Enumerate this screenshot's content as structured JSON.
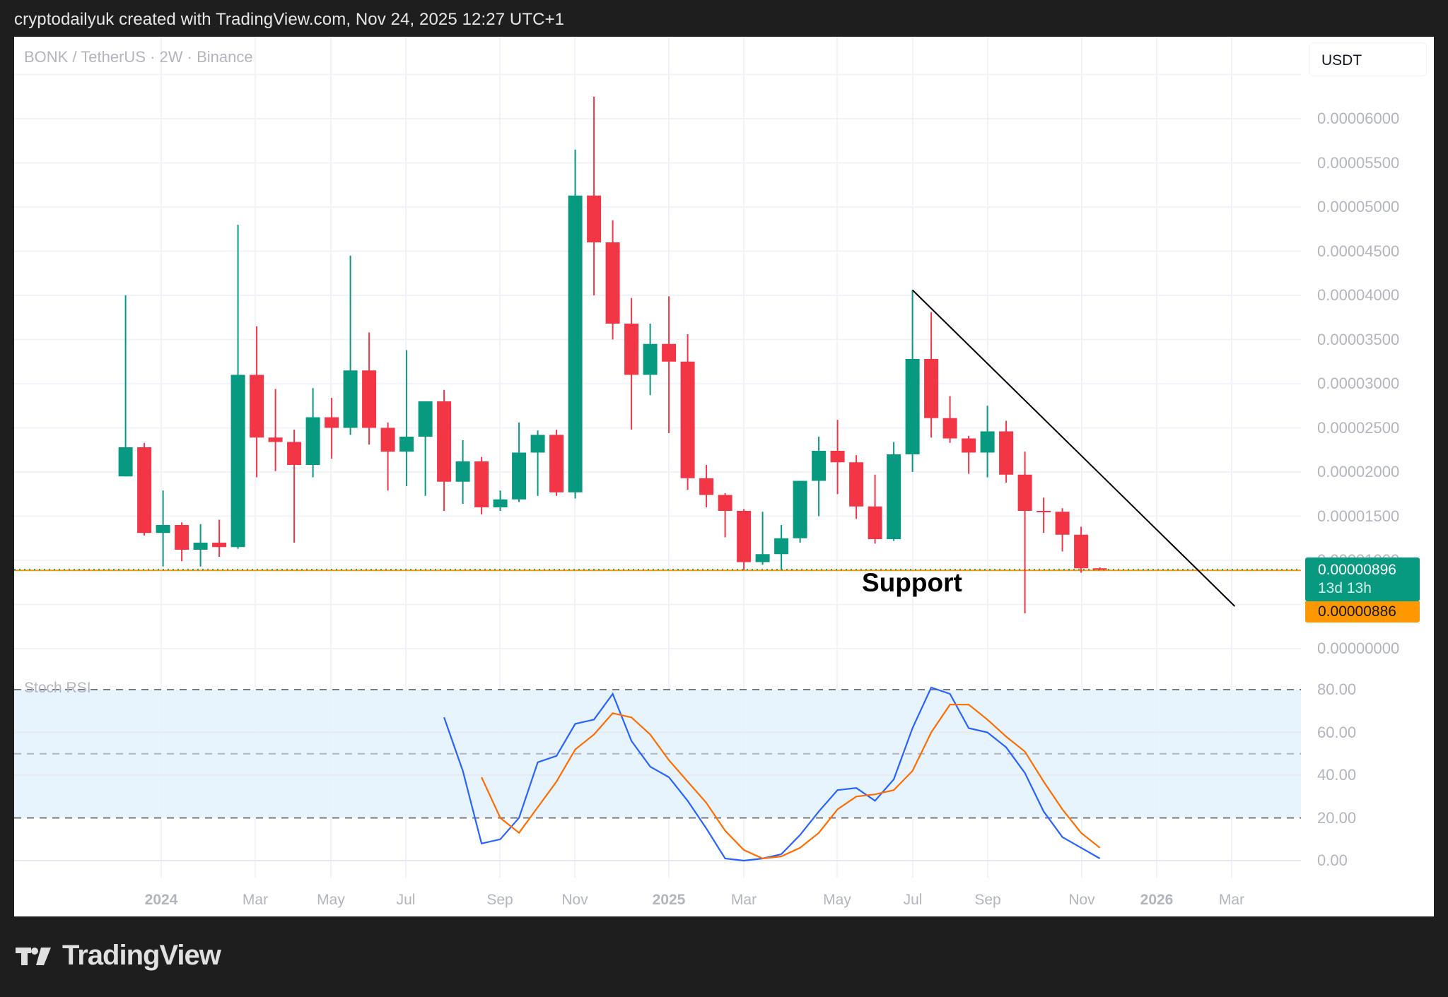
{
  "header": {
    "attribution": "cryptodailyuk created with TradingView.com, Nov 24, 2025 12:27 UTC+1"
  },
  "chart": {
    "symbol_line": "BONK / TetherUS · 2W · Binance",
    "currency_button": "USDT",
    "annotation": "Support",
    "indicator_title": "Stoch RSI",
    "last_price_label": "0.00000896",
    "countdown_label": "13d 13h",
    "support_price_label": "0.00000886",
    "price_axis_labels": [
      "0.00006000",
      "0.00005500",
      "0.00005000",
      "0.00004500",
      "0.00004000",
      "0.00003500",
      "0.00003000",
      "0.00002500",
      "0.00002000",
      "0.00001500",
      "0.00001000",
      "0.00000000"
    ],
    "stoch_axis_labels": [
      "80.00",
      "60.00",
      "40.00",
      "20.00",
      "0.00"
    ],
    "time_axis_labels": [
      {
        "label": "2024",
        "bold": true
      },
      {
        "label": "Mar",
        "bold": false
      },
      {
        "label": "May",
        "bold": false
      },
      {
        "label": "Jul",
        "bold": false
      },
      {
        "label": "Sep",
        "bold": false
      },
      {
        "label": "Nov",
        "bold": false
      },
      {
        "label": "2025",
        "bold": true
      },
      {
        "label": "Mar",
        "bold": false
      },
      {
        "label": "May",
        "bold": false
      },
      {
        "label": "Jul",
        "bold": false
      },
      {
        "label": "Sep",
        "bold": false
      },
      {
        "label": "Nov",
        "bold": false
      },
      {
        "label": "2026",
        "bold": true
      },
      {
        "label": "Mar",
        "bold": false
      }
    ],
    "colors": {
      "up": "#089981",
      "down": "#f23645",
      "stoch_k": "#2962ff",
      "stoch_d": "#ff6d00",
      "support": "#ff9800",
      "band_fill": "#e3f2fd"
    }
  },
  "footer": {
    "brand": "TradingView"
  },
  "chart_data": [
    {
      "type": "candlestick",
      "title": "BONK / TetherUS · 2W · Binance",
      "ylabel": "USDT",
      "ylim": [
        0,
        6e-05
      ],
      "grid": true,
      "x_ticks": [
        "2024",
        "Mar",
        "May",
        "Jul",
        "Sep",
        "Nov",
        "2025",
        "Mar",
        "May",
        "Jul",
        "Sep",
        "Nov",
        "2026",
        "Mar"
      ],
      "units": "1e-6 USDT",
      "candles": [
        {
          "o": 19.5,
          "h": 40.0,
          "l": 19.5,
          "c": 22.8
        },
        {
          "o": 22.8,
          "h": 23.3,
          "l": 12.8,
          "c": 13.1
        },
        {
          "o": 13.1,
          "h": 17.9,
          "l": 9.3,
          "c": 14.0
        },
        {
          "o": 14.0,
          "h": 14.3,
          "l": 9.9,
          "c": 11.2
        },
        {
          "o": 11.2,
          "h": 14.1,
          "l": 9.3,
          "c": 12.0
        },
        {
          "o": 12.0,
          "h": 14.6,
          "l": 10.4,
          "c": 11.5
        },
        {
          "o": 11.5,
          "h": 48.0,
          "l": 11.3,
          "c": 31.0
        },
        {
          "o": 31.0,
          "h": 36.5,
          "l": 19.4,
          "c": 23.9
        },
        {
          "o": 23.9,
          "h": 29.4,
          "l": 20.1,
          "c": 23.4
        },
        {
          "o": 23.4,
          "h": 24.8,
          "l": 12.0,
          "c": 20.8
        },
        {
          "o": 20.8,
          "h": 29.5,
          "l": 19.4,
          "c": 26.2
        },
        {
          "o": 26.2,
          "h": 28.4,
          "l": 21.5,
          "c": 25.0
        },
        {
          "o": 25.0,
          "h": 44.5,
          "l": 24.2,
          "c": 31.5
        },
        {
          "o": 31.5,
          "h": 35.8,
          "l": 23.1,
          "c": 25.0
        },
        {
          "o": 25.0,
          "h": 25.6,
          "l": 17.9,
          "c": 22.3
        },
        {
          "o": 22.3,
          "h": 33.8,
          "l": 18.4,
          "c": 24.0
        },
        {
          "o": 24.0,
          "h": 27.9,
          "l": 17.3,
          "c": 28.0
        },
        {
          "o": 28.0,
          "h": 29.3,
          "l": 15.6,
          "c": 18.9
        },
        {
          "o": 18.9,
          "h": 23.6,
          "l": 16.4,
          "c": 21.2
        },
        {
          "o": 21.2,
          "h": 21.7,
          "l": 15.2,
          "c": 16.0
        },
        {
          "o": 16.0,
          "h": 17.9,
          "l": 15.6,
          "c": 16.9
        },
        {
          "o": 16.9,
          "h": 25.6,
          "l": 16.6,
          "c": 22.2
        },
        {
          "o": 22.2,
          "h": 24.7,
          "l": 17.3,
          "c": 24.2
        },
        {
          "o": 24.2,
          "h": 24.8,
          "l": 17.3,
          "c": 17.7
        },
        {
          "o": 17.7,
          "h": 56.5,
          "l": 17.0,
          "c": 51.3
        },
        {
          "o": 51.3,
          "h": 62.5,
          "l": 40.0,
          "c": 46.0
        },
        {
          "o": 46.0,
          "h": 48.5,
          "l": 35.0,
          "c": 36.8
        },
        {
          "o": 36.8,
          "h": 39.7,
          "l": 24.8,
          "c": 31.0
        },
        {
          "o": 31.0,
          "h": 36.8,
          "l": 28.7,
          "c": 34.5
        },
        {
          "o": 34.5,
          "h": 39.9,
          "l": 24.4,
          "c": 32.5
        },
        {
          "o": 32.5,
          "h": 35.6,
          "l": 18.0,
          "c": 19.3
        },
        {
          "o": 19.3,
          "h": 20.8,
          "l": 16.0,
          "c": 17.4
        },
        {
          "o": 17.4,
          "h": 17.6,
          "l": 12.6,
          "c": 15.6
        },
        {
          "o": 15.6,
          "h": 15.8,
          "l": 8.9,
          "c": 9.8
        },
        {
          "o": 9.8,
          "h": 15.5,
          "l": 9.5,
          "c": 10.7
        },
        {
          "o": 10.7,
          "h": 14.0,
          "l": 8.9,
          "c": 12.5
        },
        {
          "o": 12.5,
          "h": 19.0,
          "l": 12.0,
          "c": 19.0
        },
        {
          "o": 19.0,
          "h": 24.0,
          "l": 15.0,
          "c": 22.4
        },
        {
          "o": 22.4,
          "h": 25.9,
          "l": 17.5,
          "c": 21.1
        },
        {
          "o": 21.1,
          "h": 21.9,
          "l": 14.7,
          "c": 16.1
        },
        {
          "o": 16.1,
          "h": 19.7,
          "l": 11.9,
          "c": 12.4
        },
        {
          "o": 12.4,
          "h": 23.4,
          "l": 12.2,
          "c": 22.0
        },
        {
          "o": 22.0,
          "h": 40.6,
          "l": 20.0,
          "c": 32.8
        },
        {
          "o": 32.8,
          "h": 38.1,
          "l": 23.9,
          "c": 26.1
        },
        {
          "o": 26.1,
          "h": 28.6,
          "l": 23.3,
          "c": 23.8
        },
        {
          "o": 23.8,
          "h": 24.1,
          "l": 19.8,
          "c": 22.2
        },
        {
          "o": 22.2,
          "h": 27.5,
          "l": 19.4,
          "c": 24.6
        },
        {
          "o": 24.6,
          "h": 25.8,
          "l": 18.8,
          "c": 19.7
        },
        {
          "o": 19.7,
          "h": 22.3,
          "l": 4.0,
          "c": 15.6
        },
        {
          "o": 15.6,
          "h": 17.1,
          "l": 13.1,
          "c": 15.5
        },
        {
          "o": 15.5,
          "h": 15.9,
          "l": 11.0,
          "c": 12.9
        },
        {
          "o": 12.9,
          "h": 13.8,
          "l": 8.6,
          "c": 9.1
        },
        {
          "o": 9.1,
          "h": 9.2,
          "l": 8.9,
          "c": 8.96
        }
      ],
      "horizontal_line": {
        "label": "Support",
        "value": 8.86e-06,
        "color": "#ff9800"
      },
      "trendline": {
        "from": {
          "index": 42,
          "value": 40.6
        },
        "to": {
          "index": 59.2,
          "value": 4.8
        }
      },
      "last_price": 8.96e-06,
      "countdown": "13d 13h"
    },
    {
      "type": "line",
      "title": "Stoch RSI",
      "ylim": [
        0,
        100
      ],
      "bands": {
        "upper": 80,
        "middle": 50,
        "lower": 20
      },
      "y_ticks": [
        0,
        20,
        40,
        60,
        80
      ],
      "series": [
        {
          "name": "%K",
          "color": "#2962ff",
          "start_index": 17,
          "values": [
            67,
            42,
            8,
            10,
            20,
            46,
            49,
            64,
            66,
            78,
            56,
            44,
            39,
            28,
            15,
            1,
            0,
            1,
            3,
            12,
            23,
            33,
            34,
            28,
            38,
            62,
            81,
            78,
            62,
            60,
            53,
            41,
            23,
            11,
            6,
            1
          ]
        },
        {
          "name": "%D",
          "color": "#ff6d00",
          "start_index": 19,
          "values": [
            39,
            20,
            13,
            25,
            37,
            52,
            59,
            69,
            67,
            59,
            47,
            37,
            27,
            14,
            5,
            1,
            2,
            6,
            13,
            24,
            30,
            31,
            33,
            42,
            60,
            73,
            73,
            66,
            58,
            51,
            37,
            24,
            13,
            6
          ]
        }
      ]
    }
  ]
}
